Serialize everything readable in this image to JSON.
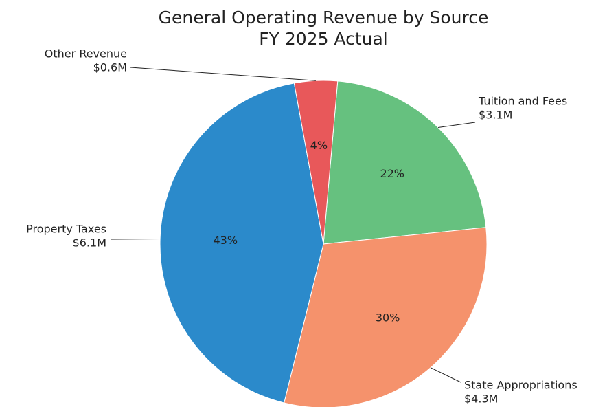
{
  "chart_data": {
    "type": "pie",
    "title": "General Operating Revenue by Source",
    "subtitle": "FY 2025 Actual",
    "categories": [
      "Tuition and Fees",
      "State Appropriations",
      "Property Taxes",
      "Other Revenue"
    ],
    "values": [
      3.1,
      4.3,
      6.1,
      0.6
    ],
    "value_labels": [
      "$3.1M",
      "$4.3M",
      "$6.1M",
      "$0.6M"
    ],
    "percent_labels": [
      "22%",
      "30%",
      "43%",
      "4%"
    ],
    "colors": [
      "#66c17f",
      "#f5926c",
      "#2b8acb",
      "#e8585a"
    ]
  }
}
